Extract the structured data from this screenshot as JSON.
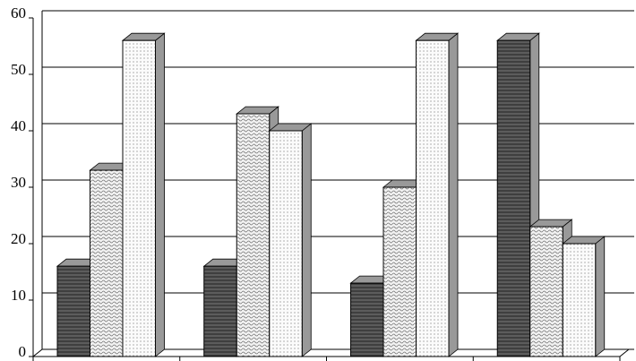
{
  "chart_data": {
    "type": "bar3d",
    "categories": [
      null,
      null,
      null,
      null
    ],
    "series": [
      {
        "color": "#5c5c5c",
        "values": [
          16,
          16,
          13,
          56
        ]
      },
      {
        "color": "#f2f2f2",
        "values": [
          33,
          43,
          30,
          23
        ]
      },
      {
        "color": "#fbfbfb",
        "values": [
          56,
          40,
          56,
          20
        ]
      }
    ],
    "ylim": [
      0,
      60
    ],
    "yticks": [
      0,
      10,
      20,
      30,
      40,
      50,
      60
    ],
    "grid": true
  }
}
